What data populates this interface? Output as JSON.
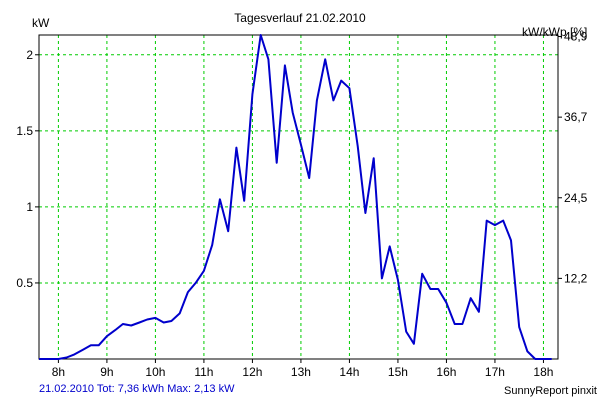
{
  "chart_data": {
    "type": "line",
    "title": "Tagesverlauf 21.02.2010",
    "ylabel_left": "kW",
    "ylabel_right": "kW/kWp [%]",
    "xlim": [
      7.6,
      18.3
    ],
    "ylim": [
      0,
      2.13
    ],
    "x_ticks": [
      8,
      9,
      10,
      11,
      12,
      13,
      14,
      15,
      16,
      17,
      18
    ],
    "x_tick_labels": [
      "8h",
      "9h",
      "10h",
      "11h",
      "12h",
      "13h",
      "14h",
      "15h",
      "16h",
      "17h",
      "18h"
    ],
    "y_ticks_left": [
      0.5,
      1,
      1.5,
      2
    ],
    "y_tick_labels_left": [
      "0.5",
      "1",
      "1.5",
      "2"
    ],
    "y_ticks_right": [
      0.53,
      1.06,
      1.59,
      2.12
    ],
    "y_tick_labels_right": [
      "12,2",
      "24,5",
      "36,7",
      "48,9"
    ],
    "grid": true,
    "colors": {
      "line": "#0000cc",
      "grid": "#00cc00",
      "axis": "#000000"
    },
    "series": [
      {
        "x": [
          7.6,
          7.8,
          8.0,
          8.17,
          8.33,
          8.5,
          8.67,
          8.83,
          9.0,
          9.17,
          9.33,
          9.5,
          9.67,
          9.83,
          10.0,
          10.17,
          10.33,
          10.5,
          10.67,
          10.83,
          11.0,
          11.17,
          11.33,
          11.5,
          11.67,
          11.83,
          12.0,
          12.17,
          12.33,
          12.5,
          12.67,
          12.83,
          13.0,
          13.17,
          13.33,
          13.5,
          13.67,
          13.83,
          14.0,
          14.17,
          14.33,
          14.5,
          14.67,
          14.83,
          15.0,
          15.17,
          15.33,
          15.5,
          15.67,
          15.83,
          16.0,
          16.17,
          16.33,
          16.5,
          16.67,
          16.83,
          17.0,
          17.17,
          17.33,
          17.5,
          17.67,
          17.83,
          18.0,
          18.17
        ],
        "values": [
          0,
          0,
          0,
          0.01,
          0.03,
          0.06,
          0.09,
          0.09,
          0.15,
          0.19,
          0.23,
          0.22,
          0.24,
          0.26,
          0.27,
          0.24,
          0.25,
          0.3,
          0.44,
          0.5,
          0.58,
          0.75,
          1.05,
          0.84,
          1.39,
          1.04,
          1.74,
          2.13,
          1.97,
          1.29,
          1.93,
          1.62,
          1.41,
          1.19,
          1.7,
          1.97,
          1.7,
          1.83,
          1.78,
          1.4,
          0.96,
          1.32,
          0.53,
          0.74,
          0.52,
          0.18,
          0.1,
          0.56,
          0.46,
          0.46,
          0.37,
          0.23,
          0.23,
          0.4,
          0.31,
          0.91,
          0.88,
          0.91,
          0.78,
          0.21,
          0.05,
          0,
          0,
          0
        ]
      }
    ]
  },
  "footer": {
    "summary": "21.02.2010 Tot: 7,36 kWh Max: 2,13 kW",
    "brand": "SunnyReport pinxit"
  }
}
